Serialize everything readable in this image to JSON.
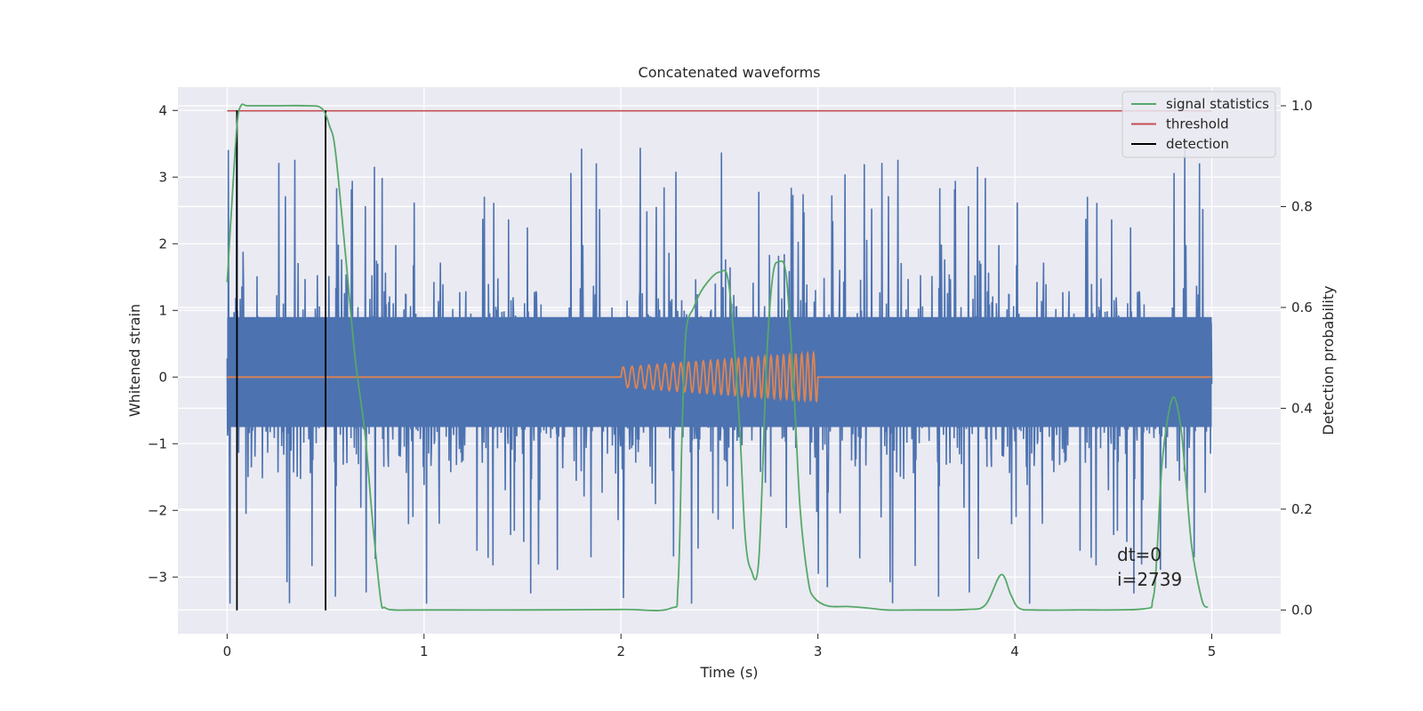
{
  "chart_data": {
    "type": "line",
    "title": "Concatenated waveforms",
    "xlabel": "Time (s)",
    "ylabel": "Whitened strain",
    "ylabel_right": "Detection probability",
    "xlim": [
      -0.25,
      5.35
    ],
    "ylim": [
      -3.85,
      4.35
    ],
    "ylim_right": [
      -0.047,
      1.037
    ],
    "xticks": [
      0,
      1,
      2,
      3,
      4,
      5
    ],
    "xtick_labels": [
      "0",
      "1",
      "2",
      "3",
      "4",
      "5"
    ],
    "yticks": [
      -3,
      -2,
      -1,
      0,
      1,
      2,
      3,
      4
    ],
    "ytick_labels": [
      "−3",
      "−2",
      "−1",
      "0",
      "1",
      "2",
      "3",
      "4"
    ],
    "yticks_right": [
      0.0,
      0.2,
      0.4,
      0.6,
      0.8,
      1.0
    ],
    "ytick_labels_right": [
      "0.0",
      "0.2",
      "0.4",
      "0.6",
      "0.8",
      "1.0"
    ],
    "grid": true,
    "legend_position": "top-right",
    "series": [
      {
        "name": "",
        "kind": "noise",
        "color": "#4c72b0",
        "x_range": [
          0,
          5
        ],
        "band_core": [
          -0.75,
          0.9
        ],
        "peak_min": -3.4,
        "peak_max": 3.9
      },
      {
        "name": "",
        "kind": "chirp",
        "color": "#dd8452",
        "x_range": [
          0,
          5
        ],
        "chirp_start": 2.0,
        "chirp_end": 3.0,
        "chirp_amp_start": 0.15,
        "chirp_amp_end": 0.37,
        "chirp_freq_start": 22,
        "chirp_freq_end": 34
      },
      {
        "name": "signal statistics",
        "axis": "right",
        "color": "#55a868",
        "x": [
          0.0,
          0.02,
          0.05,
          0.07,
          0.1,
          0.15,
          0.25,
          0.4,
          0.48,
          0.52,
          0.55,
          0.6,
          0.65,
          0.7,
          0.74,
          0.78,
          0.8,
          0.85,
          1.0,
          1.5,
          2.0,
          2.25,
          2.29,
          2.31,
          2.33,
          2.37,
          2.42,
          2.5,
          2.55,
          2.6,
          2.63,
          2.66,
          2.7,
          2.74,
          2.77,
          2.8,
          2.84,
          2.88,
          2.91,
          2.95,
          2.98,
          3.05,
          3.15,
          3.25,
          3.35,
          3.5,
          3.75,
          3.85,
          3.93,
          3.98,
          4.02,
          4.1,
          4.3,
          4.65,
          4.7,
          4.72,
          4.75,
          4.8,
          4.84,
          4.87,
          4.9,
          4.95,
          4.98
        ],
        "y": [
          0.65,
          0.78,
          0.96,
          1.0,
          1.0,
          1.0,
          1.0,
          1.0,
          0.995,
          0.96,
          0.91,
          0.71,
          0.5,
          0.35,
          0.17,
          0.02,
          0.005,
          0.0,
          0.0,
          0.0,
          0.001,
          0.003,
          0.05,
          0.35,
          0.55,
          0.6,
          0.64,
          0.67,
          0.64,
          0.38,
          0.15,
          0.08,
          0.1,
          0.5,
          0.66,
          0.69,
          0.66,
          0.42,
          0.2,
          0.06,
          0.025,
          0.008,
          0.007,
          0.004,
          0.0,
          0.0,
          0.001,
          0.01,
          0.07,
          0.03,
          0.004,
          0.0,
          0.0,
          0.002,
          0.02,
          0.1,
          0.3,
          0.42,
          0.37,
          0.25,
          0.12,
          0.02,
          0.005
        ]
      },
      {
        "name": "threshold",
        "axis": "right",
        "color": "#c44e52",
        "x": [
          0,
          5
        ],
        "y": [
          0.99,
          0.99
        ]
      },
      {
        "name": "detection",
        "color": "#000000",
        "type": "vline",
        "x": [
          0.05,
          0.5
        ],
        "y_range": [
          -3.5,
          4.0
        ]
      }
    ],
    "annotations": [
      "dt=0",
      "i=2739"
    ]
  }
}
